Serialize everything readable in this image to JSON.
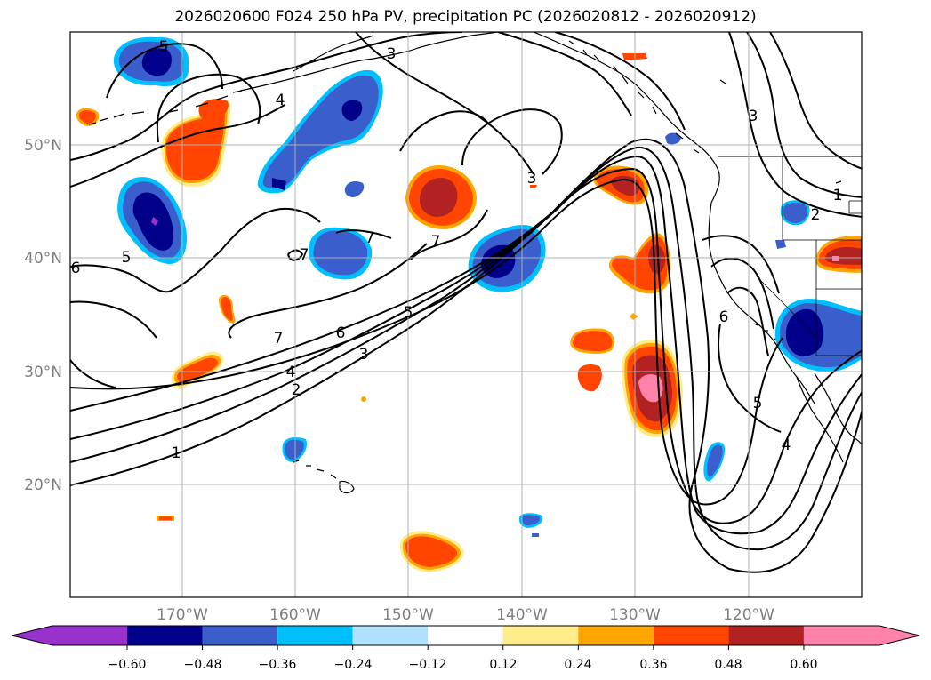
{
  "title": "2026020600 F024 250 hPa PV, precipitation PC (2026020812 - 2026020912)",
  "map": {
    "lat_labels": [
      "50°N",
      "40°N",
      "30°N",
      "20°N"
    ],
    "lon_labels": [
      "170°W",
      "160°W",
      "150°W",
      "140°W",
      "130°W",
      "120°W"
    ],
    "gridlines": true
  },
  "colorbar": {
    "ticks": [
      "−0.60",
      "−0.48",
      "−0.36",
      "−0.24",
      "−0.12",
      "0.12",
      "0.24",
      "0.36",
      "0.48",
      "0.60"
    ],
    "colors": [
      "#9932cc",
      "#00008b",
      "#3a5fcd",
      "#00bfff",
      "#b0e2ff",
      "#ffffff",
      "#ffec8b",
      "#ffa500",
      "#ff4500",
      "#b22222",
      "#ff82ab"
    ]
  },
  "contour_labels": [
    "5",
    "3",
    "4",
    "1",
    "2",
    "5",
    "7",
    "7",
    "7",
    "6",
    "5",
    "3",
    "2",
    "4",
    "7",
    "1",
    "6",
    "5",
    "4",
    "3",
    "6",
    "3"
  ],
  "palette": {
    "pv_contour": "#000000",
    "grid": "#b0b0b0",
    "coast": "#000000"
  }
}
